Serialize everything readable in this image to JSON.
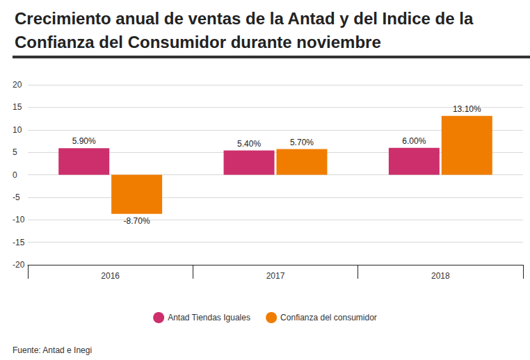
{
  "chart_data": {
    "type": "bar",
    "title": "Crecimiento anual de ventas de la Antad y del Indice de la Confianza del Consumidor durante noviembre",
    "source": "Fuente: Antad e Inegi",
    "categories": [
      "2016",
      "2017",
      "2018"
    ],
    "series": [
      {
        "name": "Antad Tiendas Iguales",
        "color": "#cc2f6b",
        "values": [
          5.9,
          5.4,
          6.0
        ],
        "value_labels": [
          "5.90%",
          "5.40%",
          "6.00%"
        ]
      },
      {
        "name": "Confianza del consumidor",
        "color": "#f07d00",
        "values": [
          -8.7,
          5.7,
          13.1
        ],
        "value_labels": [
          "-8.70%",
          "5.70%",
          "13.10%"
        ]
      }
    ],
    "ylim": [
      -20,
      20
    ],
    "yticks": [
      -20,
      -15,
      -10,
      -5,
      0,
      5,
      10,
      15,
      20
    ],
    "grid": true,
    "legend": "bottom",
    "data_labels": true
  }
}
